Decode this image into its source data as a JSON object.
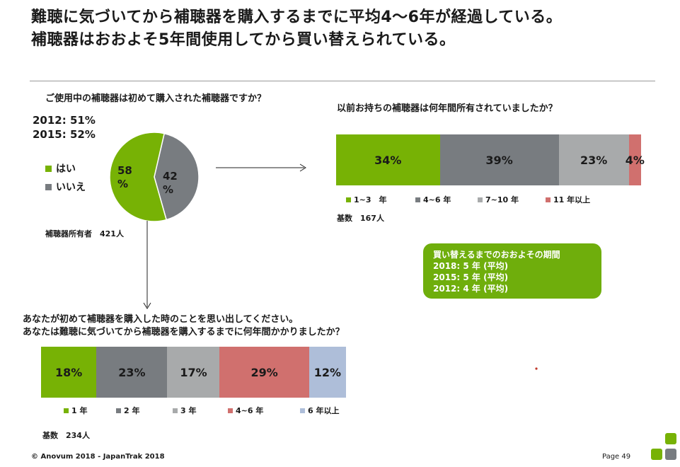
{
  "page": {
    "title_line1": "難聴に気づいてから補聴器を購入するまでに平均4～6年が経過している。",
    "title_line2": "補聴器はおおよそ5年間使用してから買い替えられている。",
    "footer_left": "© Anovum 2018 - JapanTrak 2018",
    "footer_right": "Page 49",
    "colors": {
      "green": "#77b205",
      "darkgray": "#787c80",
      "lightgray": "#a8aaab",
      "salmon": "#d0706e",
      "lightblue": "#aebed9",
      "callout": "#6fae0c"
    }
  },
  "chart_data": [
    {
      "type": "pie",
      "title": "ご使用中の補聴器は初めて購入された補聴器ですか？",
      "stats": [
        "2012: 51%",
        "2015: 52%"
      ],
      "slices": [
        {
          "label": "はい",
          "value": 58,
          "display": "58 %",
          "color": "#77b205"
        },
        {
          "label": "いいえ",
          "value": 42,
          "display": "42 %",
          "color": "#787c80"
        }
      ],
      "base_note": "補聴器所有者　421人"
    },
    {
      "type": "bar",
      "stacked": true,
      "title": "以前お持ちの補聴器は何年間所有されていましたか？",
      "categories": [
        "1~3　年",
        "4~6 年",
        "7~10 年",
        "11 年以上"
      ],
      "values": [
        34,
        39,
        23,
        4
      ],
      "labels": [
        "34%",
        "39%",
        "23%",
        "4%"
      ],
      "colors": [
        "#77b205",
        "#787c80",
        "#a8aaab",
        "#d0706e"
      ],
      "base_note": "基数　167人"
    },
    {
      "type": "bar",
      "stacked": true,
      "title_line1": "あなたが初めて補聴器を購入した時のことを思い出してください。",
      "title_line2": "あなたは難聴に気づいてから補聴器を購入するまでに何年間かかりましたか？",
      "categories": [
        "1 年",
        "2 年",
        "3 年",
        "4~6 年",
        "6 年以上"
      ],
      "values": [
        18,
        23,
        17,
        29,
        12
      ],
      "labels": [
        "18%",
        "23%",
        "17%",
        "29%",
        "12%"
      ],
      "colors": [
        "#77b205",
        "#787c80",
        "#a8aaab",
        "#d0706e",
        "#aebed9"
      ],
      "base_note": "基数　234人"
    }
  ],
  "callout": {
    "lines": [
      "買い替えるまでのおおよその期間",
      "2018: 5 年 (平均)",
      "2015: 5 年 (平均)",
      "2012: 4 年 (平均)"
    ]
  }
}
